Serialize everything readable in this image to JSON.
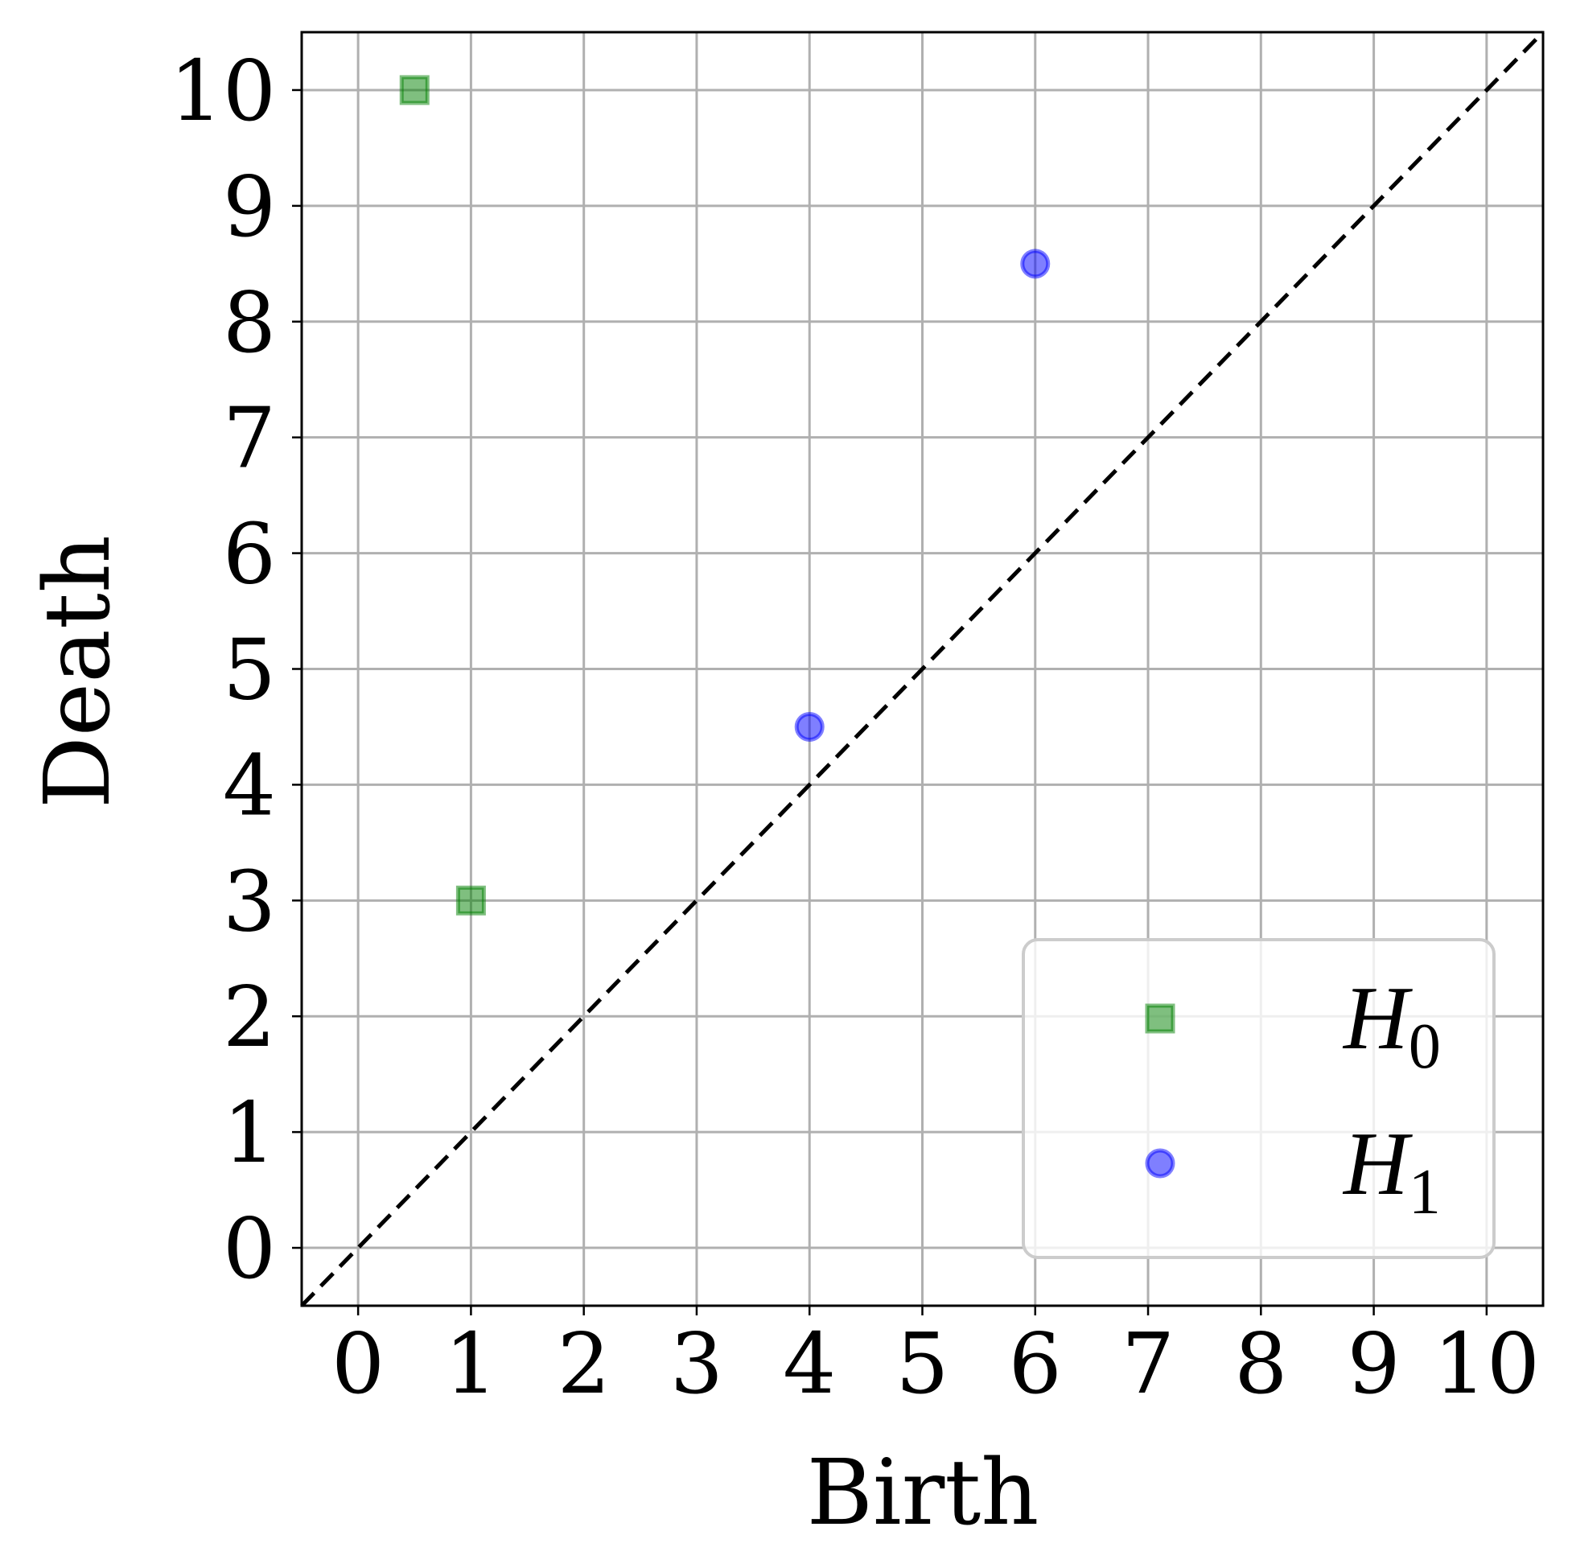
{
  "chart_data": {
    "type": "scatter",
    "xlabel": "Birth",
    "ylabel": "Death",
    "xlim": [
      -0.5,
      10.5
    ],
    "ylim": [
      -0.5,
      10.5
    ],
    "xticks": [
      0,
      1,
      2,
      3,
      4,
      5,
      6,
      7,
      8,
      9,
      10
    ],
    "yticks": [
      0,
      1,
      2,
      3,
      4,
      5,
      6,
      7,
      8,
      9,
      10
    ],
    "grid": true,
    "diagonal": {
      "style": "dashed",
      "color": "#000000",
      "from": [
        -0.5,
        -0.5
      ],
      "to": [
        10.5,
        10.5
      ]
    },
    "legend_position": "lower-right",
    "series": [
      {
        "name": "H",
        "subscript": "0",
        "marker": "square",
        "color": "#008000",
        "points": [
          {
            "x": 0.5,
            "y": 10
          },
          {
            "x": 1,
            "y": 3
          }
        ]
      },
      {
        "name": "H",
        "subscript": "1",
        "marker": "circle",
        "color": "#0000ff",
        "points": [
          {
            "x": 4,
            "y": 4.5
          },
          {
            "x": 6,
            "y": 8.5
          }
        ]
      }
    ]
  }
}
